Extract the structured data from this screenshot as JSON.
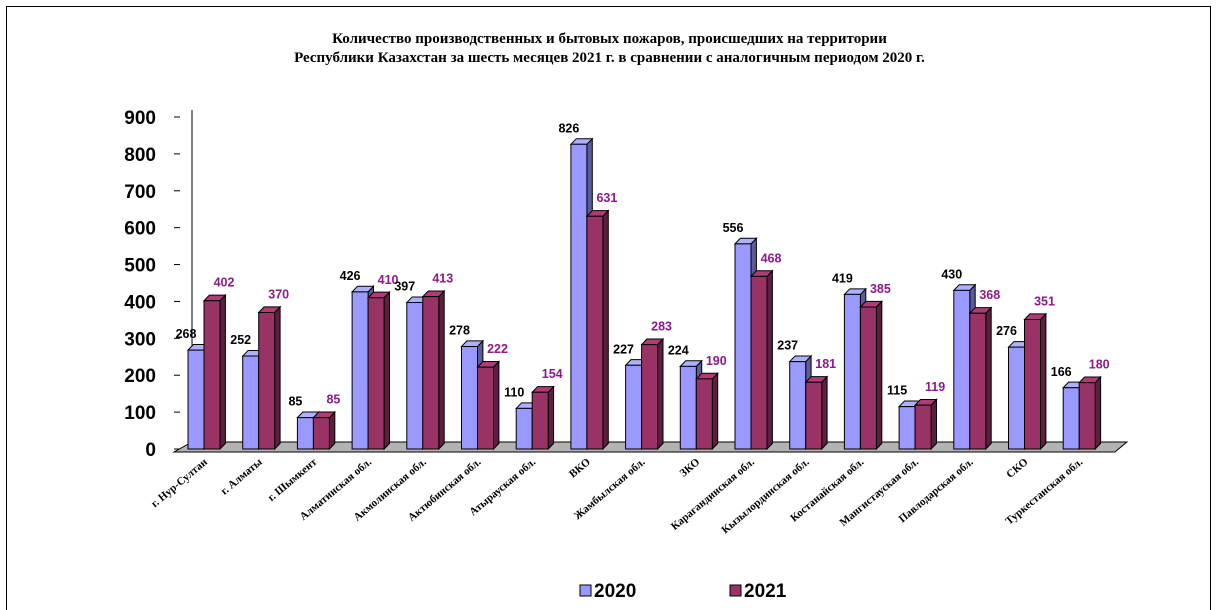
{
  "chart_data": {
    "type": "bar",
    "title_line1": "Количество производственных и бытовых пожаров, происшедших на территории",
    "title_line2": "Республики Казахстан за шесть месяцев 2021 г. в сравнении с аналогичным периодом 2020 г.",
    "categories": [
      "г. Нур-Султан",
      "г. Алматы",
      "г. Шымкент",
      "Алматинская обл.",
      "Акмолинская обл.",
      "Актюбинская обл.",
      "Атырауская обл.",
      "ВКО",
      "Жамбылская обл.",
      "ЗКО",
      "Карагандинская обл.",
      "Кызылординская обл.",
      "Костанайская обл.",
      "Мангистауская обл.",
      "Павлодарская обл.",
      "СКО",
      "Туркестанская обл."
    ],
    "series": [
      {
        "name": "2020",
        "values": [
          268,
          252,
          85,
          426,
          397,
          278,
          110,
          826,
          227,
          224,
          556,
          237,
          419,
          115,
          430,
          276,
          166
        ],
        "color": "#9999ff"
      },
      {
        "name": "2021",
        "values": [
          402,
          370,
          85,
          410,
          413,
          222,
          154,
          631,
          283,
          190,
          468,
          181,
          385,
          119,
          368,
          351,
          180
        ],
        "color": "#993366"
      }
    ],
    "yticks": [
      "0",
      "100",
      "200",
      "300",
      "400",
      "500",
      "600",
      "700",
      "800",
      "900"
    ],
    "ylim": [
      0,
      900
    ],
    "legend_position": "bottom",
    "grid": false,
    "label_color_2021": "#8b1a8b"
  }
}
